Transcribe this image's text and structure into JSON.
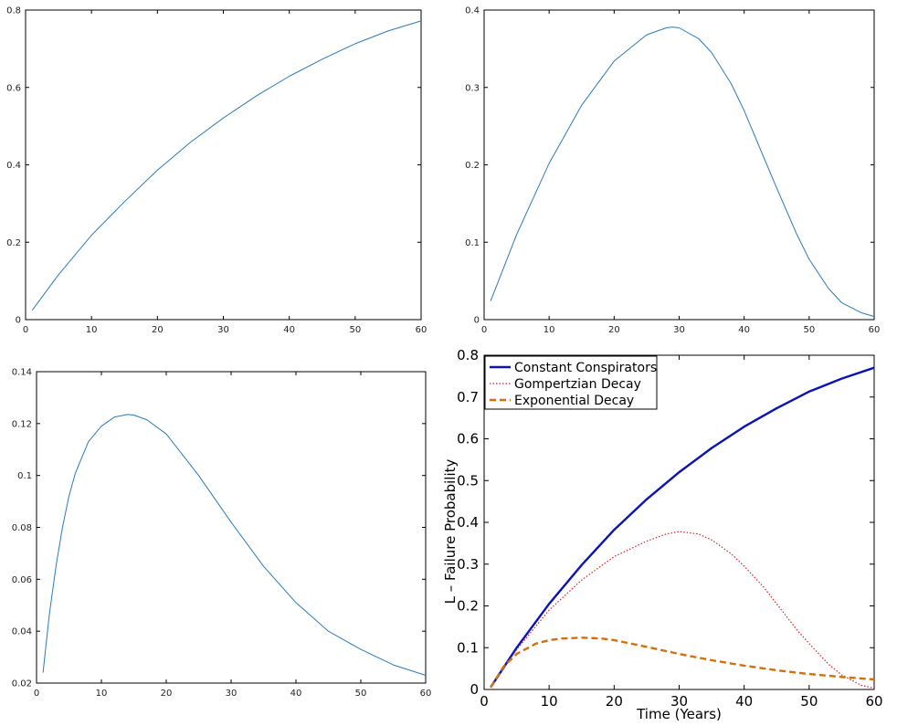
{
  "colors": {
    "thin_line": "#2b7bba",
    "constant": "#0a14b4",
    "gompertz": "#d81f26",
    "exponential": "#d4700a",
    "axis": "#000000"
  },
  "chart_data": [
    {
      "id": "top-left",
      "type": "line",
      "title": "",
      "xlabel": "",
      "ylabel": "",
      "xlim": [
        0,
        60
      ],
      "ylim": [
        0,
        0.8
      ],
      "xticks": [
        0,
        10,
        20,
        30,
        40,
        50,
        60
      ],
      "yticks": [
        0,
        0.2,
        0.4,
        0.6,
        0.8
      ],
      "xtick_labels": [
        "0",
        "10",
        "20",
        "30",
        "40",
        "50",
        "60"
      ],
      "ytick_labels": [
        "0",
        "0.2",
        "0.4",
        "0.6",
        "0.8"
      ],
      "series": [
        {
          "name": "Constant Conspirators",
          "x": [
            1,
            5,
            10,
            15,
            20,
            25,
            30,
            35,
            40,
            45,
            50,
            55,
            60
          ],
          "y": [
            0.024,
            0.116,
            0.218,
            0.305,
            0.386,
            0.458,
            0.521,
            0.578,
            0.629,
            0.673,
            0.713,
            0.746,
            0.772
          ]
        }
      ]
    },
    {
      "id": "top-right",
      "type": "line",
      "title": "",
      "xlabel": "",
      "ylabel": "",
      "xlim": [
        0,
        60
      ],
      "ylim": [
        0,
        0.4
      ],
      "xticks": [
        0,
        10,
        20,
        30,
        40,
        50,
        60
      ],
      "yticks": [
        0,
        0.1,
        0.2,
        0.3,
        0.4
      ],
      "xtick_labels": [
        "0",
        "10",
        "20",
        "30",
        "40",
        "50",
        "60"
      ],
      "ytick_labels": [
        "0",
        "0.1",
        "0.2",
        "0.3",
        "0.4"
      ],
      "series": [
        {
          "name": "Gompertzian Decay",
          "x": [
            1,
            5,
            10,
            15,
            20,
            25,
            28,
            29,
            30,
            33,
            35,
            38,
            40,
            43,
            45,
            48,
            50,
            53,
            55,
            58,
            60
          ],
          "y": [
            0.024,
            0.11,
            0.202,
            0.277,
            0.334,
            0.368,
            0.377,
            0.378,
            0.377,
            0.363,
            0.345,
            0.305,
            0.27,
            0.21,
            0.17,
            0.112,
            0.078,
            0.04,
            0.022,
            0.009,
            0.004
          ]
        }
      ]
    },
    {
      "id": "bottom-left",
      "type": "line",
      "title": "",
      "xlabel": "",
      "ylabel": "",
      "xlim": [
        0,
        60
      ],
      "ylim": [
        0.02,
        0.14
      ],
      "xticks": [
        0,
        10,
        20,
        30,
        40,
        50,
        60
      ],
      "yticks": [
        0.02,
        0.04,
        0.06,
        0.08,
        0.1,
        0.12,
        0.14
      ],
      "xtick_labels": [
        "0",
        "10",
        "20",
        "30",
        "40",
        "50",
        "60"
      ],
      "ytick_labels": [
        "0.02",
        "0.04",
        "0.06",
        "0.08",
        "0.1",
        "0.12",
        "0.14"
      ],
      "series": [
        {
          "name": "Exponential Decay",
          "x": [
            1,
            2,
            3,
            4,
            5,
            6,
            8,
            10,
            12,
            14,
            15,
            17,
            20,
            25,
            30,
            35,
            40,
            45,
            50,
            55,
            60
          ],
          "y": [
            0.024,
            0.047,
            0.065,
            0.08,
            0.092,
            0.101,
            0.113,
            0.119,
            0.1225,
            0.1235,
            0.1233,
            0.1215,
            0.116,
            0.1,
            0.082,
            0.065,
            0.051,
            0.04,
            0.033,
            0.027,
            0.023
          ]
        }
      ]
    },
    {
      "id": "bottom-right",
      "type": "line",
      "title": "",
      "xlabel": "Time (Years)",
      "ylabel": "L – Failure Probability",
      "xlim": [
        0,
        60
      ],
      "ylim": [
        0,
        0.8
      ],
      "xticks": [
        0,
        10,
        20,
        30,
        40,
        50,
        60
      ],
      "yticks": [
        0,
        0.1,
        0.2,
        0.3,
        0.4,
        0.5,
        0.6,
        0.7,
        0.8
      ],
      "xtick_labels": [
        "0",
        "10",
        "20",
        "30",
        "40",
        "50",
        "60"
      ],
      "ytick_labels": [
        "0",
        "0.1",
        "0.2",
        "0.3",
        "0.4",
        "0.5",
        "0.6",
        "0.7",
        "0.8"
      ],
      "legend_position": "top-left",
      "series": [
        {
          "name": "Constant Conspirators",
          "x": [
            1,
            5,
            10,
            15,
            20,
            25,
            30,
            35,
            40,
            45,
            50,
            55,
            60
          ],
          "y": [
            0.005,
            0.1,
            0.205,
            0.298,
            0.382,
            0.455,
            0.52,
            0.578,
            0.629,
            0.673,
            0.713,
            0.744,
            0.77
          ]
        },
        {
          "name": "Gompertzian Decay",
          "x": [
            1,
            5,
            10,
            15,
            20,
            25,
            28,
            30,
            33,
            35,
            38,
            40,
            43,
            45,
            48,
            50,
            53,
            55,
            58,
            60
          ],
          "y": [
            0.005,
            0.095,
            0.19,
            0.262,
            0.318,
            0.355,
            0.372,
            0.378,
            0.372,
            0.358,
            0.325,
            0.295,
            0.245,
            0.205,
            0.145,
            0.11,
            0.06,
            0.035,
            0.01,
            0.003
          ]
        },
        {
          "name": "Exponential Decay",
          "x": [
            1,
            3,
            5,
            8,
            10,
            12,
            15,
            18,
            20,
            25,
            30,
            35,
            40,
            45,
            50,
            55,
            60
          ],
          "y": [
            0.005,
            0.055,
            0.085,
            0.11,
            0.118,
            0.122,
            0.124,
            0.122,
            0.118,
            0.102,
            0.085,
            0.07,
            0.057,
            0.046,
            0.037,
            0.03,
            0.024
          ]
        }
      ]
    }
  ]
}
